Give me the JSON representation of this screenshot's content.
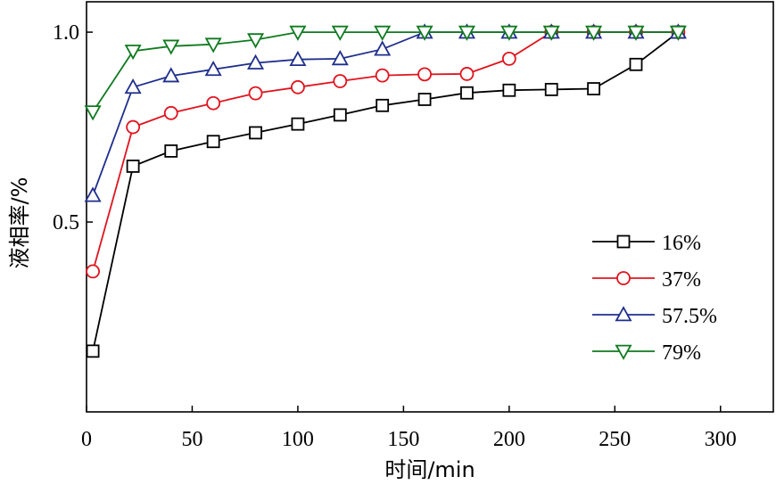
{
  "chart_data": {
    "type": "line",
    "title": "",
    "xlabel": "时间/min",
    "ylabel": "液相率/%",
    "xlim": [
      0,
      325
    ],
    "ylim": [
      0,
      1.08
    ],
    "xticks": [
      0,
      50,
      100,
      150,
      200,
      250,
      300
    ],
    "yticks": [
      0.5,
      1.0
    ],
    "ytick_labels": [
      "0.5",
      "1.0"
    ],
    "grid": false,
    "legend_position": "right",
    "x": [
      3,
      22,
      40,
      60,
      80,
      100,
      120,
      140,
      160,
      180,
      200,
      220,
      240,
      260,
      280
    ],
    "series": [
      {
        "name": "16%",
        "color": "#000000",
        "marker": "square",
        "values": [
          0.16,
          0.647,
          0.687,
          0.712,
          0.735,
          0.758,
          0.782,
          0.807,
          0.823,
          0.84,
          0.847,
          0.849,
          0.851,
          0.915,
          1.0
        ]
      },
      {
        "name": "37%",
        "color": "#e0141e",
        "marker": "circle",
        "values": [
          0.37,
          0.75,
          0.787,
          0.813,
          0.839,
          0.855,
          0.871,
          0.886,
          0.889,
          0.89,
          0.93,
          1.0,
          1.0,
          1.0,
          1.0
        ]
      },
      {
        "name": "57.5%",
        "color": "#1f2f8c",
        "marker": "triangle-up",
        "values": [
          0.57,
          0.855,
          0.885,
          0.902,
          0.919,
          0.928,
          0.93,
          0.955,
          1.0,
          1.0,
          1.0,
          1.0,
          1.0,
          1.0,
          1.0
        ]
      },
      {
        "name": "79%",
        "color": "#0f7a1f",
        "marker": "triangle-down",
        "values": [
          0.79,
          0.95,
          0.963,
          0.968,
          0.98,
          1.0,
          1.0,
          1.0,
          1.0,
          1.0,
          1.0,
          1.0,
          1.0,
          1.0,
          1.0
        ]
      }
    ]
  }
}
